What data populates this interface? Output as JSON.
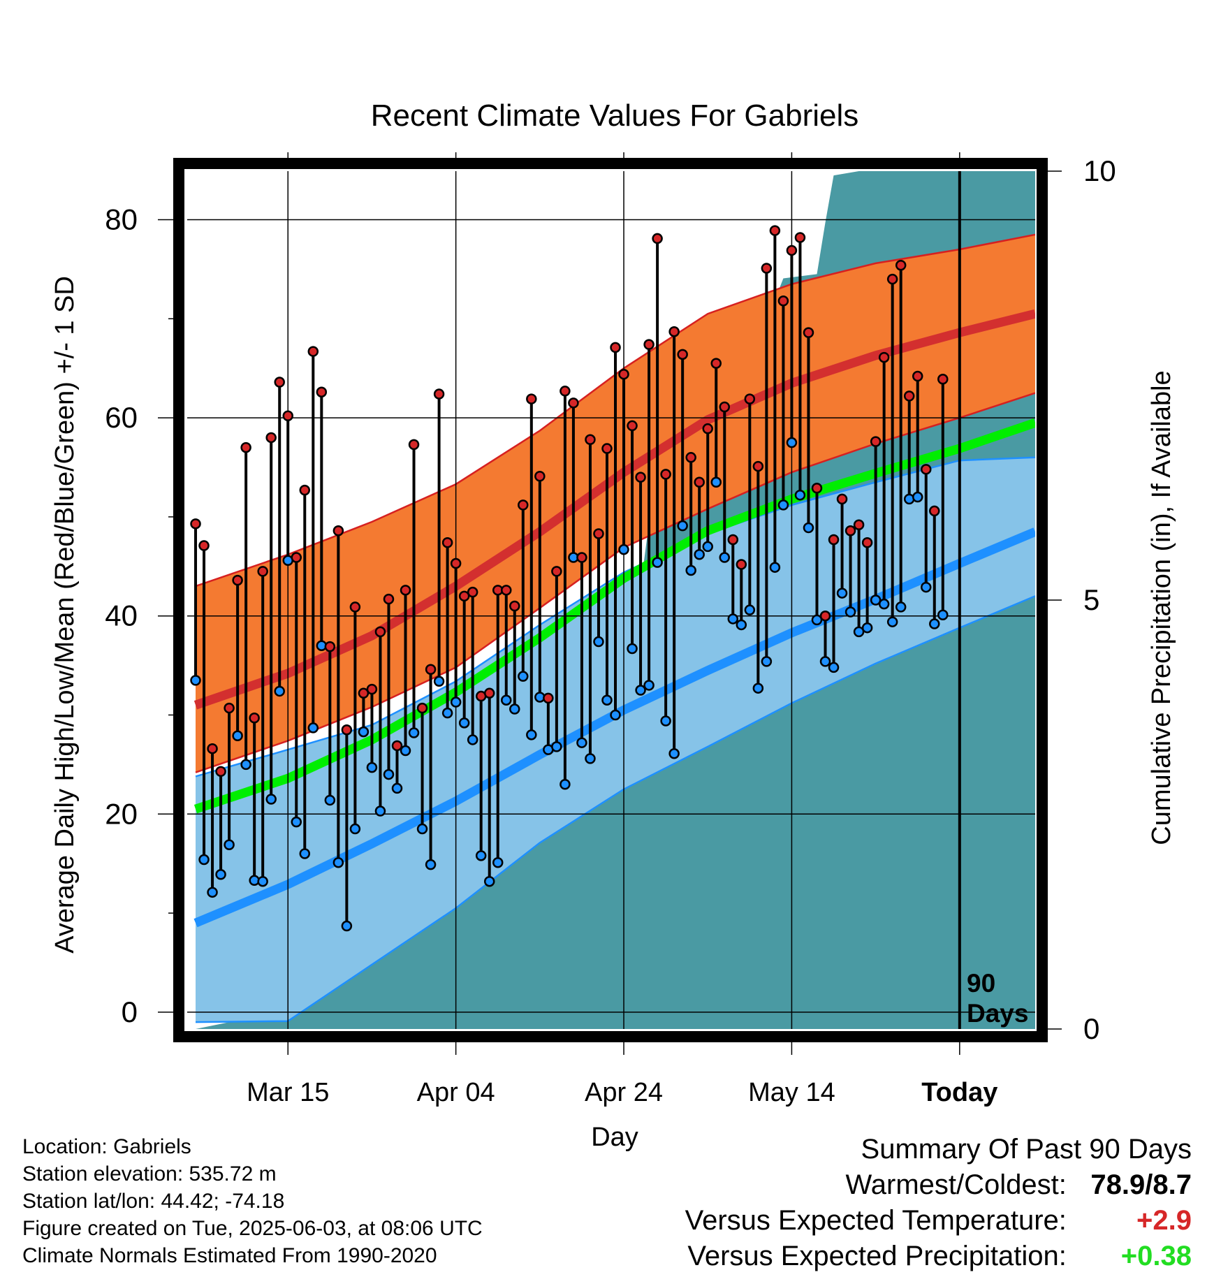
{
  "title": "Recent Climate Values For Gabriels",
  "ylabel_left": "Average Daily High/Low/Mean (Red/Blue/Green) +/- 1 SD",
  "ylabel_right": "Cumulative Precipitation (in), If Available",
  "xlabel": "Day",
  "today_marker": [
    "90",
    "Days"
  ],
  "info": {
    "location": "Location: Gabriels",
    "elevation": "Station elevation: 535.72 m",
    "latlon": "Station lat/lon: 44.42; -74.18",
    "created": "Figure created on Tue, 2025-06-03, at 08:06 UTC",
    "normals": "Climate Normals Estimated From 1990-2020"
  },
  "summary": {
    "title": "Summary Of Past 90 Days",
    "warm_cold_label": "Warmest/Coldest:",
    "warm_cold_value": "78.9/8.7",
    "temp_label": "Versus Expected Temperature:",
    "temp_value": "+2.9",
    "precip_label": "Versus Expected Precipitation:",
    "precip_value": "+0.38",
    "colors": {
      "temp": "#d62728",
      "precip": "#22dd22"
    }
  },
  "chart_data": {
    "type": "line",
    "x_range": [
      -92,
      9
    ],
    "y_left": {
      "range": [
        -1.7,
        84.9
      ],
      "ticks": [
        0,
        20,
        40,
        60,
        80
      ],
      "minor": [
        10,
        30,
        50,
        70
      ]
    },
    "y_right": {
      "range": [
        -0.0,
        10.0
      ],
      "ticks": [
        0,
        5,
        10,
        15
      ]
    },
    "x_ticks": [
      {
        "day": -80,
        "label": "Mar 15"
      },
      {
        "day": -60,
        "label": "Apr 04"
      },
      {
        "day": -40,
        "label": "Apr 24"
      },
      {
        "day": -20,
        "label": "May 14"
      },
      {
        "day": 0,
        "label": "Today"
      }
    ],
    "colors": {
      "high_band": "#f47a31",
      "high_edge": "#d62020",
      "high_mean": "#d32f2f",
      "low_band": "#86c3e8",
      "low_edge": "#1e90ff",
      "low_mean": "#1e90ff",
      "mean": "#00ee00",
      "precip": "#4a9aa3",
      "overlap": "#a31717"
    },
    "normal_days": [
      -91,
      -80,
      -70,
      -60,
      -50,
      -40,
      -30,
      -20,
      -10,
      0,
      9
    ],
    "normal_high": {
      "mean": [
        31,
        34.2,
        38,
        43,
        48.5,
        54.5,
        59.8,
        63.5,
        66.3,
        68.6,
        70.5
      ],
      "upper": [
        43,
        46.2,
        49.5,
        53.3,
        58.7,
        65,
        70.5,
        73.5,
        75.6,
        77,
        78.5
      ],
      "lower": [
        24.2,
        27.4,
        30.8,
        34.8,
        40.8,
        46.9,
        50.8,
        54.5,
        57.4,
        60,
        62.5
      ]
    },
    "normal_low": {
      "mean": [
        9,
        12.9,
        17,
        21.3,
        26,
        30.5,
        34.5,
        38.3,
        41.7,
        45.3,
        48.5
      ],
      "upper": [
        23.8,
        26.5,
        29,
        33.4,
        39.1,
        44.4,
        48.3,
        51.2,
        53.5,
        55.7,
        56
      ],
      "lower": [
        -1,
        -0.9,
        4.8,
        10.5,
        17.1,
        22.5,
        26.8,
        31.2,
        35.2,
        38.8,
        42
      ]
    },
    "normal_mean": [
      20.5,
      23.6,
      27.5,
      32.3,
      37.8,
      43.8,
      48.6,
      51.8,
      54.4,
      56.9,
      59.5
    ],
    "daily": {
      "start_day": -91,
      "highs": [
        49.3,
        47.1,
        26.6,
        24.3,
        30.7,
        43.6,
        57.0,
        29.7,
        44.5,
        58.0,
        63.6,
        60.2,
        45.9,
        52.7,
        66.7,
        62.6,
        36.9,
        48.6,
        28.5,
        40.9,
        32.2,
        32.6,
        38.4,
        41.7,
        26.9,
        42.6,
        57.3,
        30.7,
        34.6,
        62.4,
        47.4,
        45.3,
        42.0,
        42.4,
        31.9,
        32.2,
        42.6,
        42.6,
        41.0,
        51.2,
        61.9,
        54.1,
        31.7,
        44.5,
        62.7,
        61.5,
        45.9,
        57.8,
        48.3,
        56.9,
        67.1,
        64.4,
        59.2,
        54.0,
        67.4,
        78.1,
        54.3,
        68.7,
        66.4,
        56.0,
        53.5,
        58.9,
        65.5,
        61.1,
        47.7,
        45.2,
        61.9,
        55.1,
        75.1,
        78.9,
        71.8,
        76.9,
        78.2,
        68.6,
        52.9,
        40.0,
        47.7,
        51.8,
        48.6,
        49.2,
        47.4,
        57.6,
        66.1,
        74.0,
        75.4,
        62.2,
        64.2,
        54.8,
        50.6,
        63.9
      ],
      "lows": [
        33.5,
        15.4,
        12.1,
        13.9,
        16.9,
        27.9,
        25.0,
        13.3,
        13.2,
        21.5,
        32.4,
        45.6,
        19.2,
        16.0,
        28.7,
        37.0,
        21.4,
        15.1,
        8.7,
        18.5,
        28.3,
        24.7,
        20.3,
        24.0,
        22.6,
        26.4,
        28.2,
        18.5,
        14.9,
        33.4,
        30.2,
        31.3,
        29.2,
        27.5,
        15.8,
        13.2,
        15.1,
        31.5,
        30.6,
        33.9,
        28.0,
        31.8,
        26.5,
        26.8,
        23.0,
        45.9,
        27.2,
        25.6,
        37.4,
        31.5,
        30.0,
        46.7,
        36.7,
        32.5,
        33.0,
        45.4,
        29.4,
        26.1,
        49.1,
        44.6,
        46.2,
        47.0,
        53.5,
        45.9,
        39.7,
        39.1,
        40.6,
        32.7,
        35.4,
        44.9,
        51.2,
        57.5,
        52.2,
        48.9,
        39.6,
        35.4,
        34.8,
        42.3,
        40.4,
        38.4,
        38.8,
        41.6,
        41.2,
        39.4,
        40.9,
        51.8,
        52.0,
        42.9,
        39.2,
        40.1
      ]
    },
    "precip_cumulative": [
      [
        -91,
        0
      ],
      [
        -86,
        0.1
      ],
      [
        -81,
        0.1
      ],
      [
        -80,
        0.25
      ],
      [
        -79,
        0.8
      ],
      [
        -75,
        0.85
      ],
      [
        -71,
        0.95
      ],
      [
        -70,
        1.15
      ],
      [
        -68,
        1.2
      ],
      [
        -67,
        1.6
      ],
      [
        -66,
        2.0
      ],
      [
        -65,
        2.3
      ],
      [
        -63,
        2.35
      ],
      [
        -62,
        2.5
      ],
      [
        -61,
        3.3
      ],
      [
        -60,
        3.4
      ],
      [
        -59,
        3.7
      ],
      [
        -54,
        3.8
      ],
      [
        -51,
        3.85
      ],
      [
        -48,
        4.1
      ],
      [
        -45,
        4.4
      ],
      [
        -44,
        4.95
      ],
      [
        -42,
        5.1
      ],
      [
        -38,
        5.15
      ],
      [
        -37,
        5.9
      ],
      [
        -35,
        6.3
      ],
      [
        -34,
        6.9
      ],
      [
        -31,
        7.0
      ],
      [
        -30,
        7.3
      ],
      [
        -27,
        7.5
      ],
      [
        -24,
        7.8
      ],
      [
        -22,
        8.5
      ],
      [
        -21,
        8.75
      ],
      [
        -17,
        8.8
      ],
      [
        -16,
        9.4
      ],
      [
        -15,
        9.95
      ],
      [
        -12,
        10.0
      ],
      [
        -10,
        10.4
      ],
      [
        -9,
        10.5
      ],
      [
        -5,
        10.6
      ],
      [
        -4,
        10.8
      ],
      [
        -3,
        11.3
      ],
      [
        -2,
        11.4
      ],
      [
        0,
        11.4
      ],
      [
        9,
        11.4
      ]
    ]
  }
}
